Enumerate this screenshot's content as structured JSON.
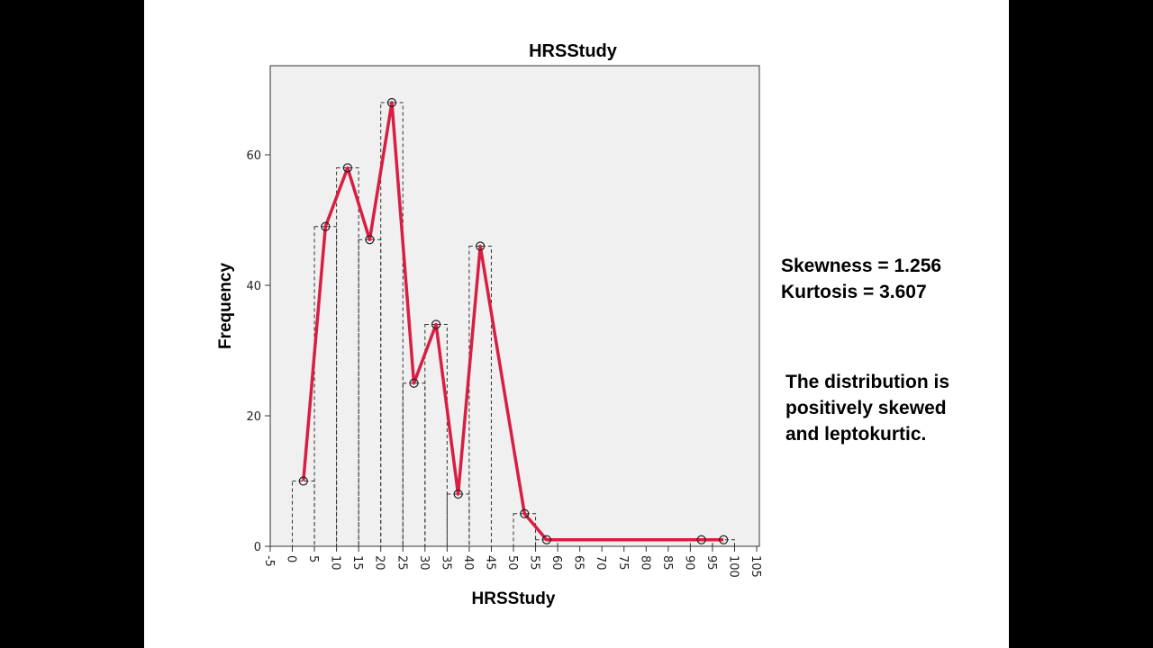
{
  "chart_data": {
    "type": "line",
    "title": "HRSStudy",
    "xlabel": "HRSStudy",
    "ylabel": "Frequency",
    "xlim": [
      -5,
      105
    ],
    "ylim": [
      0,
      74
    ],
    "x_ticks": [
      -5,
      0,
      5,
      10,
      15,
      20,
      25,
      30,
      35,
      40,
      45,
      50,
      55,
      60,
      65,
      70,
      75,
      80,
      85,
      90,
      95,
      100,
      105
    ],
    "y_ticks": [
      0,
      20,
      40,
      60
    ],
    "grid": false,
    "histogram_bins": [
      {
        "start": 0,
        "end": 5,
        "count": 10
      },
      {
        "start": 5,
        "end": 10,
        "count": 49
      },
      {
        "start": 10,
        "end": 15,
        "count": 58
      },
      {
        "start": 15,
        "end": 20,
        "count": 47
      },
      {
        "start": 20,
        "end": 25,
        "count": 68
      },
      {
        "start": 25,
        "end": 30,
        "count": 25
      },
      {
        "start": 30,
        "end": 35,
        "count": 34
      },
      {
        "start": 35,
        "end": 40,
        "count": 8
      },
      {
        "start": 40,
        "end": 45,
        "count": 46
      },
      {
        "start": 45,
        "end": 50,
        "count": 0
      },
      {
        "start": 50,
        "end": 55,
        "count": 5
      },
      {
        "start": 55,
        "end": 60,
        "count": 1
      },
      {
        "start": 90,
        "end": 95,
        "count": 1
      },
      {
        "start": 95,
        "end": 100,
        "count": 1
      }
    ],
    "polygon": {
      "x": [
        2.5,
        7.5,
        12.5,
        17.5,
        22.5,
        27.5,
        32.5,
        37.5,
        42.5,
        52.5,
        57.5,
        92.5,
        97.5
      ],
      "y": [
        10,
        49,
        58,
        47,
        68,
        25,
        34,
        8,
        46,
        5,
        1,
        1,
        1
      ]
    },
    "colors": {
      "line": "#d81e43",
      "plot_bg": "#f0f0f0",
      "bars": "#333333"
    }
  },
  "stats": {
    "skewness": "Skewness = 1.256",
    "kurtosis": "Kurtosis = 3.607"
  },
  "note": {
    "line1": "The distribution is",
    "line2": "positively skewed",
    "line3": "and leptokurtic."
  }
}
